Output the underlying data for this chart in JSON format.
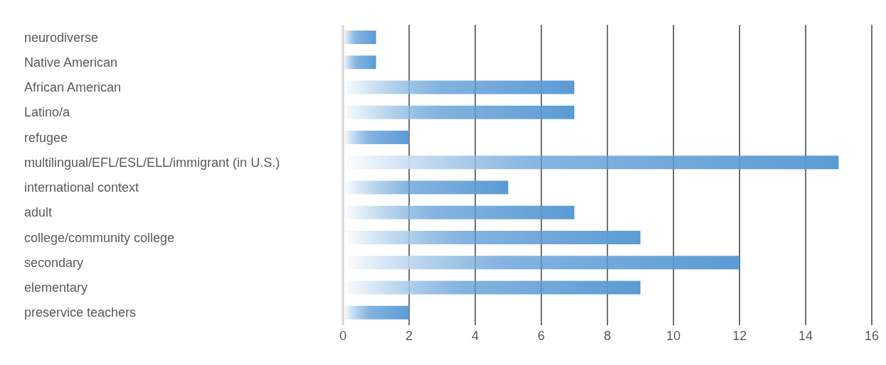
{
  "chart_data": {
    "type": "bar",
    "orientation": "horizontal",
    "categories": [
      "neurodiverse",
      "Native American",
      "African American",
      "Latino/a",
      "refugee",
      "multilingual/EFL/ESL/ELL/immigrant (in U.S.)",
      "international context",
      "adult",
      "college/community college",
      "secondary",
      "elementary",
      "preservice teachers"
    ],
    "values": [
      1,
      1,
      7,
      7,
      2,
      15,
      5,
      7,
      9,
      12,
      9,
      2
    ],
    "color": "#5b9bd5",
    "xlim": [
      0,
      16
    ],
    "xticks": [
      0,
      2,
      4,
      6,
      8,
      10,
      12,
      14,
      16
    ],
    "grid": "x"
  }
}
